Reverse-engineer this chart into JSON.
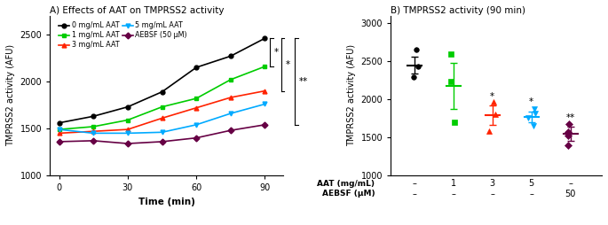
{
  "title_A": "A) Effects of AAT on TMPRSS2 activity",
  "title_B": "B) TMPRSS2 activity (90 min)",
  "xlabel_A": "Time (min)",
  "ylabel_A": "TMPRSS2 activity (AFU)",
  "ylabel_B": "TMPRSS2 activity (AFU)",
  "time_points": [
    0,
    15,
    30,
    45,
    60,
    75,
    90
  ],
  "lines": {
    "0 mg/mL AAT": {
      "color": "#000000",
      "marker": "o",
      "data": [
        1560,
        1630,
        1730,
        1890,
        2150,
        2270,
        2460
      ]
    },
    "1 mg/mL AAT": {
      "color": "#00cc00",
      "marker": "s",
      "data": [
        1490,
        1520,
        1590,
        1730,
        1820,
        2020,
        2160
      ]
    },
    "3 mg/mL AAT": {
      "color": "#ff2200",
      "marker": "^",
      "data": [
        1450,
        1470,
        1490,
        1610,
        1720,
        1830,
        1900
      ]
    },
    "5 mg/mL AAT": {
      "color": "#00aaff",
      "marker": "v",
      "data": [
        1490,
        1450,
        1450,
        1460,
        1540,
        1660,
        1760
      ]
    },
    "AEBSF (50 μM)": {
      "color": "#660044",
      "marker": "D",
      "data": [
        1360,
        1370,
        1340,
        1360,
        1400,
        1480,
        1540
      ]
    }
  },
  "ylim_A": [
    1000,
    2700
  ],
  "yticks_A": [
    1000,
    1500,
    2000,
    2500
  ],
  "xticks_A": [
    0,
    30,
    60,
    90
  ],
  "scatter_B": {
    "0 mg/mL": {
      "color": "#000000",
      "marker": "o",
      "points": [
        2290,
        2430,
        2660
      ],
      "mean": 2450,
      "sd": 115
    },
    "1 mg/mL": {
      "color": "#00cc00",
      "marker": "s",
      "points": [
        1700,
        2230,
        2600
      ],
      "mean": 2180,
      "sd": 300
    },
    "3 mg/mL": {
      "color": "#ff2200",
      "marker": "^",
      "points": [
        1580,
        1800,
        1970
      ],
      "mean": 1790,
      "sd": 130
    },
    "5 mg/mL": {
      "color": "#00aaff",
      "marker": "v",
      "points": [
        1650,
        1760,
        1820,
        1870
      ],
      "mean": 1770,
      "sd": 75
    },
    "AEBSF": {
      "color": "#660044",
      "marker": "D",
      "points": [
        1400,
        1530,
        1570,
        1680
      ],
      "mean": 1545,
      "sd": 95
    }
  },
  "ylim_B": [
    1000,
    3100
  ],
  "yticks_B": [
    1000,
    1500,
    2000,
    2500,
    3000
  ],
  "sig_B": {
    "3 mg/mL": "*",
    "5 mg/mL": "*",
    "AEBSF": "**"
  },
  "aat_labels": [
    "–",
    "1",
    "3",
    "5",
    "–"
  ],
  "aebsf_labels": [
    "–",
    "–",
    "–",
    "–",
    "50"
  ]
}
